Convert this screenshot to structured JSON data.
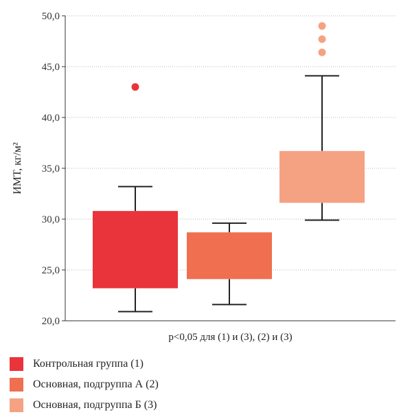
{
  "chart_data": {
    "type": "box",
    "ylabel": "ИМТ, кг/м²",
    "xlabel": "p<0,05 для (1) и (3), (2) и (3)",
    "ylim": [
      20,
      50
    ],
    "yticks": [
      20,
      25,
      30,
      35,
      40,
      45,
      50
    ],
    "ytick_labels": [
      "20,0",
      "25,0",
      "30,0",
      "35,0",
      "40,0",
      "45,0",
      "50,0"
    ],
    "grid": true,
    "legend_position": "bottom-left",
    "series": [
      {
        "name": "Контрольная группа (1)",
        "color": "#e8343a",
        "whisker_low": 20.9,
        "q1": 23.2,
        "q3": 30.8,
        "whisker_high": 33.2,
        "outliers": [
          43.0
        ]
      },
      {
        "name": "Основная, подгруппа А (2)",
        "color": "#ef6f50",
        "whisker_low": 21.6,
        "q1": 24.1,
        "q3": 28.7,
        "whisker_high": 29.6,
        "outliers": []
      },
      {
        "name": "Основная, подгруппа Б (3)",
        "color": "#f5a283",
        "whisker_low": 29.9,
        "q1": 31.6,
        "q3": 36.7,
        "whisker_high": 44.1,
        "outliers": [
          46.4,
          47.7,
          49.0
        ]
      }
    ]
  }
}
